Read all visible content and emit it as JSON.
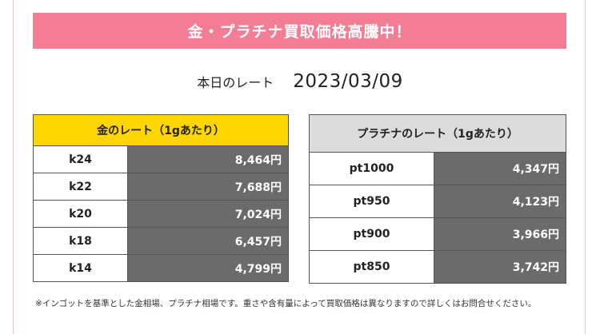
{
  "banner": {
    "text": "金・プラチナ買取価格高騰中！"
  },
  "date_row": {
    "label": "本日のレート",
    "date": "2023/03/09"
  },
  "gold": {
    "title": "金のレート（1gあたり）",
    "rows": [
      {
        "name": "k24",
        "price": "8,464円"
      },
      {
        "name": "k22",
        "price": "7,688円"
      },
      {
        "name": "k20",
        "price": "7,024円"
      },
      {
        "name": "k18",
        "price": "6,457円"
      },
      {
        "name": "k14",
        "price": "4,799円"
      }
    ]
  },
  "platinum": {
    "title": "プラチナのレート（1gあたり）",
    "rows": [
      {
        "name": "pt1000",
        "price": "4,347円"
      },
      {
        "name": "pt950",
        "price": "4,123円"
      },
      {
        "name": "pt900",
        "price": "3,966円"
      },
      {
        "name": "pt850",
        "price": "3,742円"
      }
    ]
  },
  "note": "※インゴットを基準とした金相場、プラチナ相場です。重さや含有量によって買取価格は異なりますので詳しくはお問合せください。",
  "colors": {
    "banner": "#f27d94",
    "gold_header": "#fdd500",
    "platinum_header": "#dcdcdc",
    "price_cell": "#6b6b6b"
  }
}
